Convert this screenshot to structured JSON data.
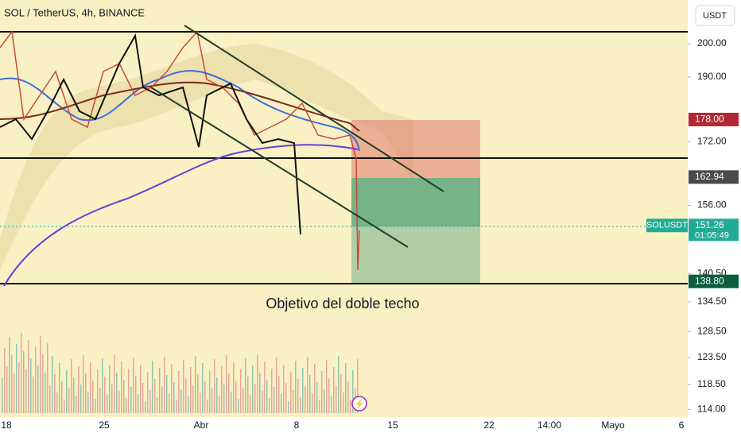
{
  "header": {
    "symbol": "SOL / TetherUS, 4h, BINANCE",
    "currency_button": "USDT"
  },
  "price_axis": {
    "scale": "log",
    "ylim": [
      114,
      219
    ],
    "ticks": [
      {
        "value": 200,
        "label": "200.00"
      },
      {
        "value": 190,
        "label": "190.00"
      },
      {
        "value": 172,
        "label": "172.00"
      },
      {
        "value": 156,
        "label": "156.00"
      },
      {
        "value": 140.5,
        "label": "140.50"
      },
      {
        "value": 134.5,
        "label": "134.50"
      },
      {
        "value": 128.5,
        "label": "128.50"
      },
      {
        "value": 123.5,
        "label": "123.50"
      },
      {
        "value": 118.5,
        "label": "118.50"
      },
      {
        "value": 114,
        "label": "114.00"
      }
    ]
  },
  "price_tags": [
    {
      "value": 178,
      "label": "178.00",
      "color": "#b22833"
    },
    {
      "value": 162.94,
      "label": "162.94",
      "color": "#4a4a4a"
    },
    {
      "value": 151.26,
      "label": "151.26",
      "color": "#22ab94",
      "symbol": "SOLUSDT",
      "countdown": "01:05:49"
    },
    {
      "value": 138.8,
      "label": "138.80",
      "color": "#0d5e3e"
    }
  ],
  "time_axis": {
    "labels": [
      "18",
      "25",
      "Abr",
      "8",
      "15",
      "22",
      "14:00",
      "Mayo",
      "6"
    ]
  },
  "annotation": "Objetivo del doble techo"
}
